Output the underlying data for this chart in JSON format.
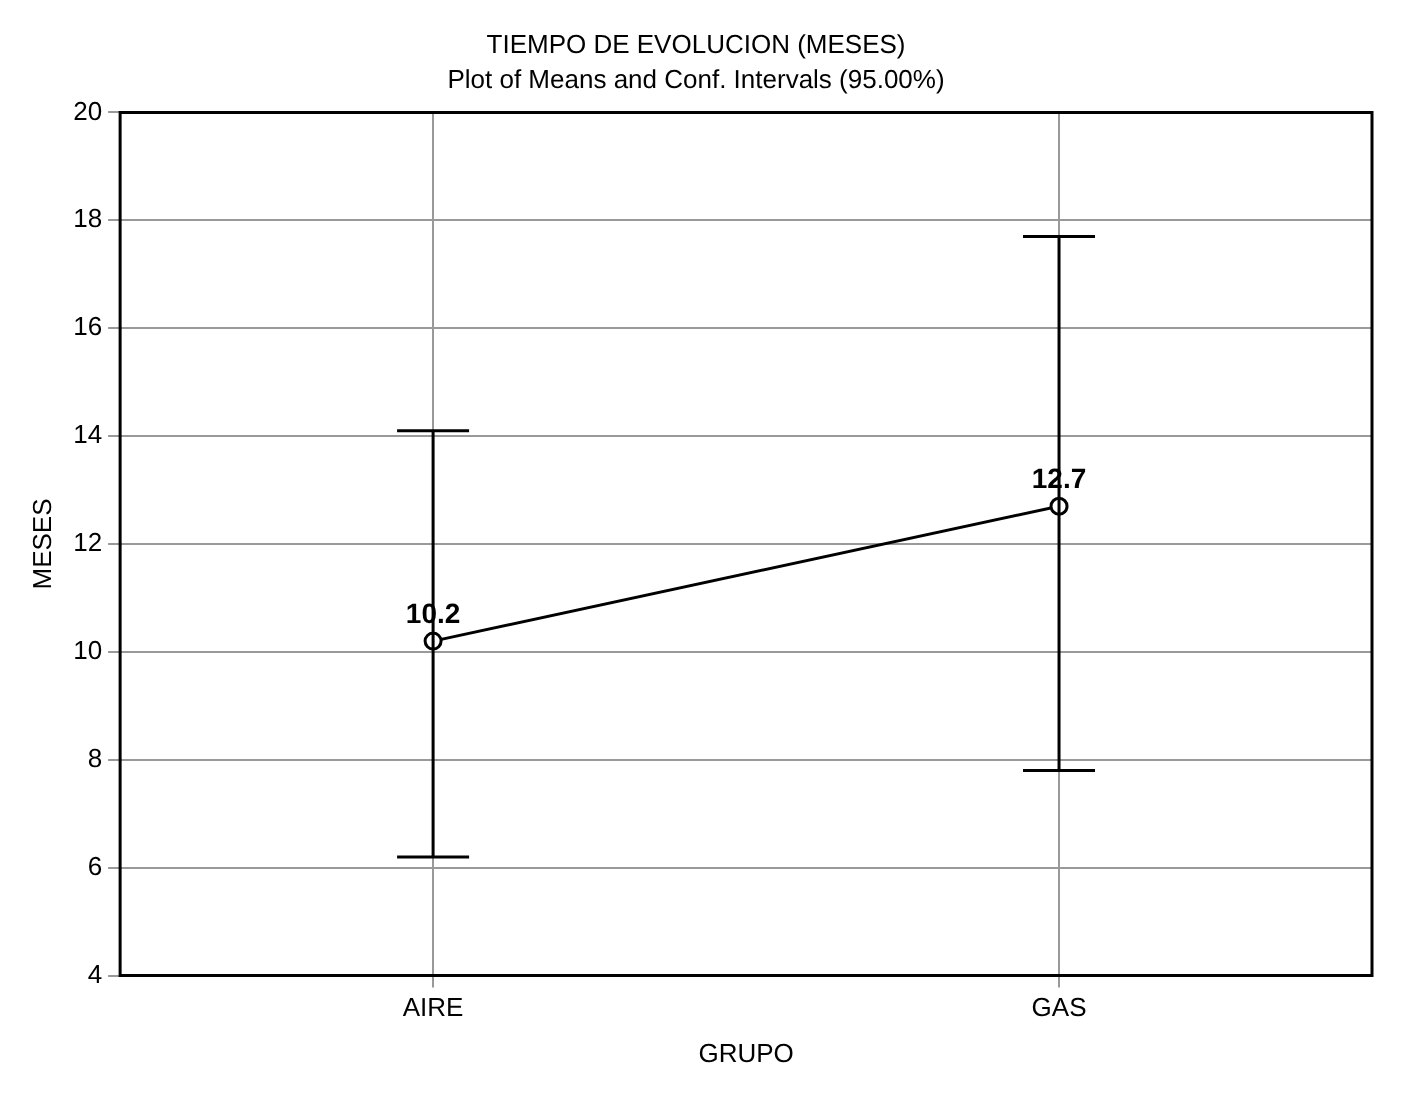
{
  "chart_data": {
    "type": "line",
    "title": "TIEMPO DE EVOLUCION (MESES)",
    "subtitle": "Plot of Means and Conf. Intervals (95.00%)",
    "xlabel": "GRUPO",
    "ylabel": "MESES",
    "categories": [
      "AIRE",
      "GAS"
    ],
    "values": [
      10.2,
      12.7
    ],
    "errors": [
      [
        6.2,
        14.1
      ],
      [
        7.8,
        17.7
      ]
    ],
    "color": "#000000",
    "ylim": [
      4,
      20
    ],
    "yticks": [
      4,
      6,
      8,
      10,
      12,
      14,
      16,
      18,
      20
    ],
    "grid": true,
    "marker": "circle",
    "line_style": "solid",
    "data_labels": true
  }
}
